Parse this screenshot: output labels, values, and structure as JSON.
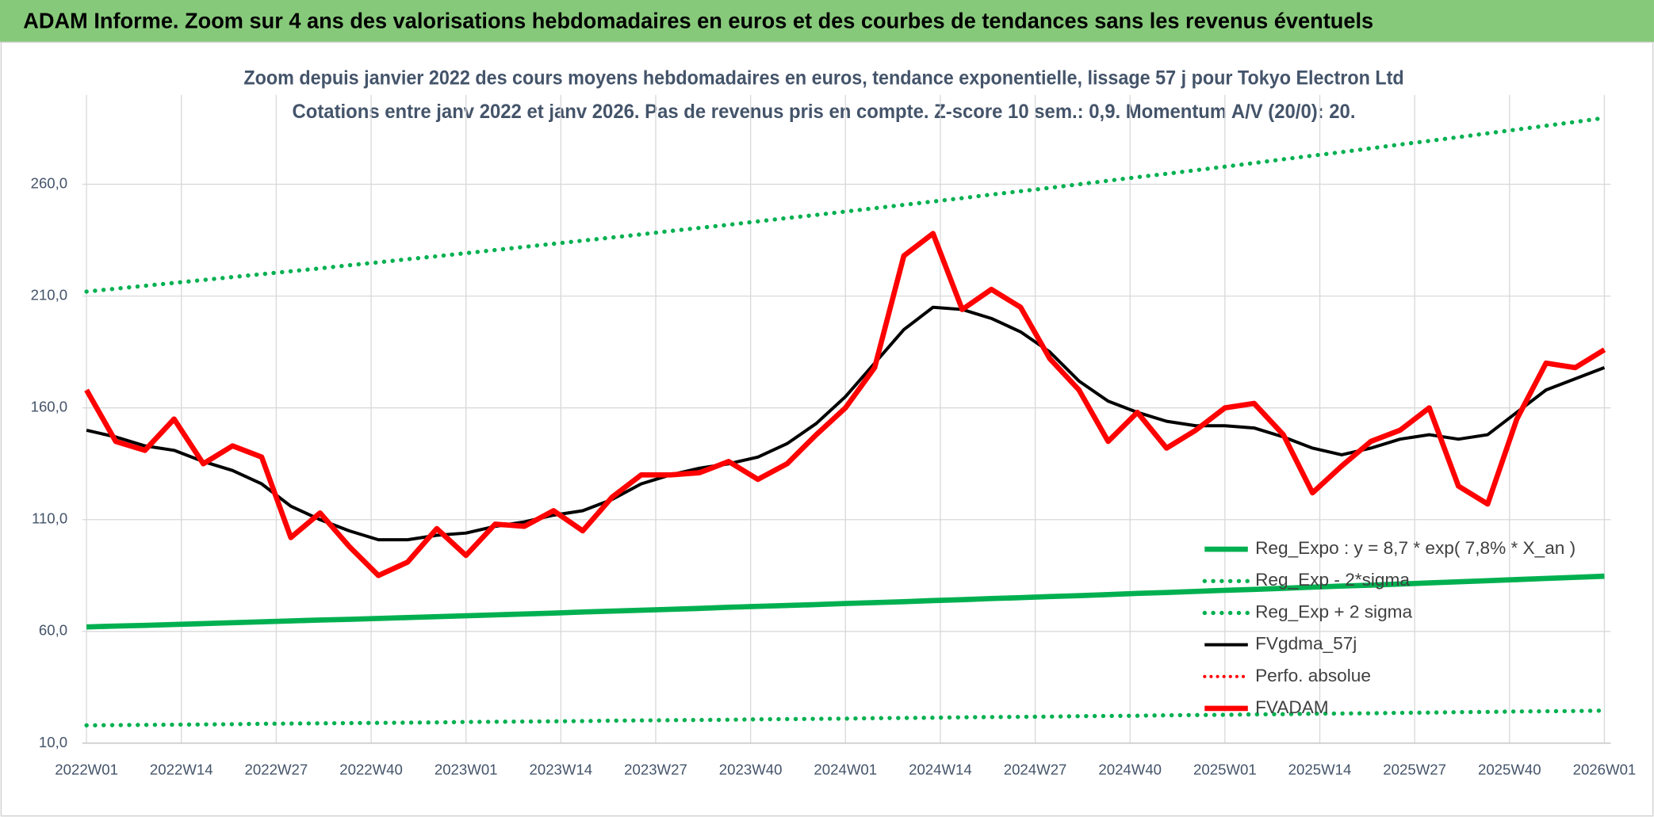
{
  "chart_data": {
    "type": "line",
    "title": "ADAM Informe. Zoom sur 4 ans des valorisations hebdomadaires en euros et des courbes de tendances sans les revenus éventuels",
    "subtitle": [
      "Zoom depuis janvier 2022 des cours moyens hebdomadaires en euros, tendance exponentielle, lissage 57 j pour Tokyo Electron Ltd",
      "Cotations entre janv 2022 et janv 2026. Pas de revenus pris en compte. Z-score 10 sem.: 0,9. Momentum A/V (20/0): 20."
    ],
    "x": [
      0,
      4,
      8,
      12,
      16,
      20,
      24,
      28,
      32,
      36,
      40,
      44,
      48,
      52,
      56,
      60,
      64,
      68,
      72,
      76,
      80,
      84,
      88,
      92,
      96,
      100,
      104,
      108,
      112,
      116,
      120,
      124,
      128,
      132,
      136,
      140,
      144,
      148,
      152,
      156,
      160,
      164,
      168,
      172,
      176,
      180,
      184,
      188,
      192,
      196,
      200,
      204,
      208
    ],
    "xlim": [
      0,
      208
    ],
    "xticks": [
      {
        "value": 0,
        "label": "2022W01"
      },
      {
        "value": 13,
        "label": "2022W14"
      },
      {
        "value": 26,
        "label": "2022W27"
      },
      {
        "value": 39,
        "label": "2022W40"
      },
      {
        "value": 52,
        "label": "2023W01"
      },
      {
        "value": 65,
        "label": "2023W14"
      },
      {
        "value": 78,
        "label": "2023W27"
      },
      {
        "value": 91,
        "label": "2023W40"
      },
      {
        "value": 104,
        "label": "2024W01"
      },
      {
        "value": 117,
        "label": "2024W14"
      },
      {
        "value": 130,
        "label": "2024W27"
      },
      {
        "value": 143,
        "label": "2024W40"
      },
      {
        "value": 156,
        "label": "2025W01"
      },
      {
        "value": 169,
        "label": "2025W14"
      },
      {
        "value": 182,
        "label": "2025W27"
      },
      {
        "value": 195,
        "label": "2025W40"
      },
      {
        "value": 208,
        "label": "2026W01"
      }
    ],
    "ylim": [
      10,
      300
    ],
    "yticks": [
      {
        "value": 10,
        "label": "10,0"
      },
      {
        "value": 60,
        "label": "60,0"
      },
      {
        "value": 110,
        "label": "110,0"
      },
      {
        "value": 160,
        "label": "160,0"
      },
      {
        "value": 210,
        "label": "210,0"
      },
      {
        "value": 260,
        "label": "260,0"
      }
    ],
    "grid": true,
    "legend": "lower-right",
    "series": [
      {
        "name": "Reg_Expo : y = 8,7 * exp( 7,8% *  X_an )",
        "color": "#00b050",
        "style": "solid",
        "width": 5,
        "values": [
          62.0,
          62.4,
          62.7,
          63.1,
          63.5,
          63.9,
          64.3,
          64.7,
          65.1,
          65.4,
          65.8,
          66.2,
          66.6,
          67.0,
          67.4,
          67.8,
          68.2,
          68.7,
          69.1,
          69.5,
          69.9,
          70.3,
          70.8,
          71.2,
          71.6,
          72.0,
          72.5,
          72.9,
          73.3,
          73.8,
          74.2,
          74.7,
          75.1,
          75.6,
          76.0,
          76.5,
          77.0,
          77.4,
          77.9,
          78.4,
          78.8,
          79.3,
          79.8,
          80.3,
          80.7,
          81.2,
          81.7,
          82.2,
          82.7,
          83.2,
          83.7,
          84.2,
          84.7
        ]
      },
      {
        "name": "Reg_Exp - 2*sigma",
        "color": "#00b050",
        "style": "dotted",
        "width": 4,
        "values": [
          18.0,
          18.1,
          18.2,
          18.3,
          18.4,
          18.5,
          18.7,
          18.8,
          18.9,
          19.0,
          19.1,
          19.2,
          19.3,
          19.5,
          19.6,
          19.7,
          19.8,
          19.9,
          20.1,
          20.2,
          20.3,
          20.4,
          20.5,
          20.7,
          20.8,
          20.9,
          21.0,
          21.2,
          21.3,
          21.4,
          21.6,
          21.7,
          21.8,
          21.9,
          22.1,
          22.2,
          22.3,
          22.5,
          22.6,
          22.7,
          22.9,
          23.0,
          23.2,
          23.3,
          23.4,
          23.6,
          23.7,
          23.9,
          24.0,
          24.2,
          24.3,
          24.4,
          24.6
        ]
      },
      {
        "name": "Reg_Exp + 2 sigma",
        "color": "#00b050",
        "style": "dotted",
        "width": 4,
        "values": [
          212.0,
          213.3,
          214.6,
          215.9,
          217.2,
          218.5,
          219.8,
          221.1,
          222.4,
          223.8,
          225.1,
          226.5,
          227.8,
          229.2,
          230.6,
          232.0,
          233.4,
          234.8,
          236.2,
          237.6,
          239.1,
          240.5,
          241.9,
          243.4,
          244.9,
          246.3,
          247.8,
          249.3,
          250.8,
          252.3,
          253.8,
          255.4,
          256.9,
          258.4,
          260.0,
          261.6,
          263.2,
          264.7,
          266.3,
          267.9,
          269.5,
          271.2,
          272.8,
          274.4,
          276.1,
          277.8,
          279.4,
          281.1,
          282.8,
          284.5,
          286.2,
          287.9,
          289.7
        ]
      },
      {
        "name": "FVgdma_57j",
        "color": "#000000",
        "style": "solid",
        "width": 3,
        "values": [
          150,
          147,
          143,
          141,
          136,
          132,
          126,
          116,
          110,
          105,
          101,
          101,
          103,
          104,
          107,
          109,
          112,
          114,
          119,
          126,
          130,
          133,
          135,
          138,
          144,
          153,
          165,
          180,
          195,
          205,
          204,
          200,
          194,
          185,
          172,
          163,
          158,
          154,
          152,
          152,
          151,
          147,
          142,
          139,
          142,
          146,
          148,
          146,
          148,
          158,
          168,
          173,
          178
        ]
      },
      {
        "name": "Perfo. absolue",
        "color": "#ff0000",
        "style": "dotted",
        "width": 3,
        "values": [
          null,
          null,
          null,
          null,
          null,
          null,
          null,
          null,
          null,
          null,
          null,
          null,
          null,
          null,
          null,
          null,
          null,
          null,
          null,
          null,
          null,
          null,
          null,
          null,
          null,
          null,
          null,
          null,
          null,
          null,
          null,
          null,
          null,
          null,
          null,
          null,
          null,
          null,
          null,
          null,
          null,
          null,
          null,
          null,
          null,
          null,
          null,
          null,
          null,
          null,
          null,
          null,
          null
        ]
      },
      {
        "name": "FVADAM",
        "color": "#ff0000",
        "style": "solid",
        "width": 5,
        "values": [
          168,
          145,
          141,
          155,
          135,
          143,
          138,
          102,
          113,
          98,
          85,
          91,
          106,
          94,
          108,
          107,
          114,
          105,
          120,
          130,
          130,
          131,
          136,
          128,
          135,
          148,
          160,
          178,
          228,
          238,
          204,
          213,
          205,
          182,
          168,
          145,
          158,
          142,
          150,
          160,
          162,
          148,
          122,
          134,
          145,
          150,
          160,
          125,
          117,
          155,
          180,
          178,
          186
        ]
      }
    ]
  }
}
